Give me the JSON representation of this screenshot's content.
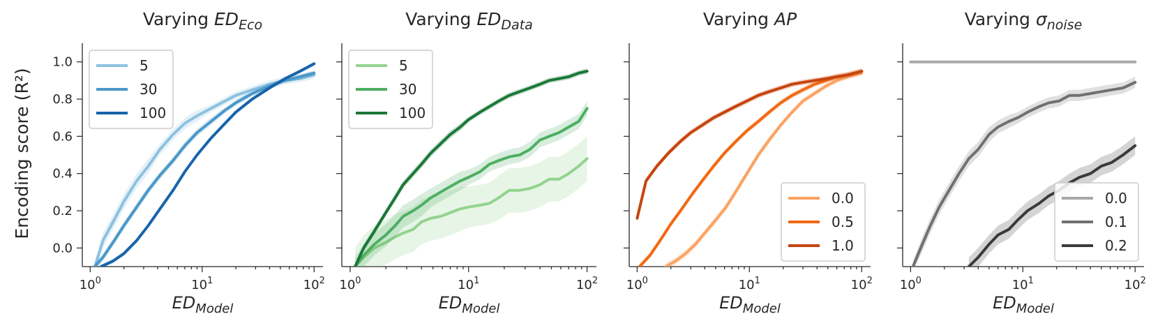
{
  "chart_data": [
    {
      "type": "line",
      "title_prefix": "Varying ",
      "title_var": "ED",
      "title_sub": "Eco",
      "xlabel_var": "ED",
      "xlabel_sub": "Model",
      "ylabel": "Encoding score (R²)",
      "xscale": "log",
      "xlim": [
        0.85,
        120
      ],
      "ylim": [
        -0.1,
        1.1
      ],
      "yticks": [
        "0.0",
        "0.2",
        "0.4",
        "0.6",
        "0.8",
        "1.0"
      ],
      "xticks": [
        {
          "base": "10",
          "exp": "0"
        },
        {
          "base": "10",
          "exp": "1"
        },
        {
          "base": "10",
          "exp": "2"
        }
      ],
      "legend_position": "top-left",
      "series": [
        {
          "name": "5",
          "color": "#8dc1e0",
          "x": [
            1.1,
            1.3,
            1.6,
            2.0,
            2.6,
            3.3,
            4.2,
            5.5,
            7,
            9,
            12,
            16,
            20,
            28,
            40,
            55,
            75,
            100
          ],
          "y": [
            -0.1,
            0.04,
            0.14,
            0.25,
            0.36,
            0.44,
            0.53,
            0.61,
            0.67,
            0.71,
            0.75,
            0.79,
            0.82,
            0.85,
            0.88,
            0.9,
            0.91,
            0.93
          ],
          "band": [
            0.03,
            0.04,
            0.04,
            0.04,
            0.04,
            0.04,
            0.03,
            0.03,
            0.03,
            0.03,
            0.02,
            0.02,
            0.02,
            0.02,
            0.02,
            0.02,
            0.02,
            0.02
          ]
        },
        {
          "name": "30",
          "color": "#4a98c9",
          "x": [
            1.1,
            1.3,
            1.6,
            2.0,
            2.6,
            3.3,
            4.2,
            5.5,
            7,
            9,
            12,
            16,
            20,
            28,
            40,
            55,
            75,
            100
          ],
          "y": [
            -0.1,
            -0.05,
            0.03,
            0.12,
            0.22,
            0.31,
            0.39,
            0.47,
            0.55,
            0.62,
            0.68,
            0.74,
            0.78,
            0.83,
            0.87,
            0.9,
            0.92,
            0.94
          ],
          "band": [
            0.02,
            0.02,
            0.02,
            0.02,
            0.02,
            0.02,
            0.02,
            0.02,
            0.02,
            0.02,
            0.02,
            0.015,
            0.015,
            0.015,
            0.015,
            0.015,
            0.015,
            0.015
          ]
        },
        {
          "name": "100",
          "color": "#1764ab",
          "x": [
            1.25,
            1.6,
            2.0,
            2.6,
            3.3,
            4.2,
            5.5,
            7,
            9,
            12,
            16,
            20,
            28,
            40,
            55,
            75,
            100
          ],
          "y": [
            -0.1,
            -0.07,
            -0.03,
            0.04,
            0.12,
            0.21,
            0.31,
            0.41,
            0.5,
            0.59,
            0.67,
            0.73,
            0.8,
            0.86,
            0.91,
            0.95,
            0.99
          ],
          "band": [
            0.01,
            0.01,
            0.01,
            0.01,
            0.01,
            0.01,
            0.01,
            0.01,
            0.01,
            0.01,
            0.01,
            0.01,
            0.01,
            0.01,
            0.01,
            0.01,
            0.01
          ]
        }
      ]
    },
    {
      "type": "line",
      "title_prefix": "Varying ",
      "title_var": "ED",
      "title_sub": "Data",
      "xlabel_var": "ED",
      "xlabel_sub": "Model",
      "ylabel": "",
      "xscale": "log",
      "xlim": [
        0.85,
        120
      ],
      "ylim": [
        -0.1,
        1.1
      ],
      "yticks": [],
      "xticks": [
        {
          "base": "10",
          "exp": "0"
        },
        {
          "base": "10",
          "exp": "1"
        },
        {
          "base": "10",
          "exp": "2"
        }
      ],
      "legend_position": "top-left",
      "series": [
        {
          "name": "5",
          "color": "#93d38e",
          "x": [
            1.1,
            1.3,
            1.6,
            2.0,
            2.4,
            2.8,
            3.4,
            4.0,
            4.8,
            5.8,
            7,
            8.5,
            10,
            12.5,
            15,
            18,
            22,
            27,
            33,
            40,
            48,
            58,
            70,
            85,
            100
          ],
          "y": [
            -0.1,
            -0.05,
            0.0,
            0.03,
            0.06,
            0.08,
            0.1,
            0.14,
            0.16,
            0.17,
            0.19,
            0.21,
            0.22,
            0.23,
            0.24,
            0.27,
            0.31,
            0.31,
            0.32,
            0.34,
            0.37,
            0.37,
            0.4,
            0.44,
            0.48
          ],
          "band": [
            0.1,
            0.12,
            0.12,
            0.12,
            0.12,
            0.12,
            0.12,
            0.12,
            0.12,
            0.12,
            0.12,
            0.12,
            0.11,
            0.11,
            0.11,
            0.12,
            0.12,
            0.12,
            0.12,
            0.12,
            0.12,
            0.12,
            0.12,
            0.12,
            0.12
          ]
        },
        {
          "name": "30",
          "color": "#4daf62",
          "x": [
            1.1,
            1.3,
            1.6,
            2.0,
            2.4,
            2.8,
            3.4,
            4.0,
            4.8,
            5.8,
            7,
            8.5,
            10,
            12.5,
            15,
            18,
            22,
            27,
            33,
            40,
            48,
            58,
            70,
            85,
            100
          ],
          "y": [
            -0.1,
            -0.04,
            0.02,
            0.07,
            0.12,
            0.17,
            0.2,
            0.23,
            0.27,
            0.3,
            0.33,
            0.36,
            0.38,
            0.41,
            0.45,
            0.47,
            0.49,
            0.5,
            0.53,
            0.58,
            0.6,
            0.62,
            0.65,
            0.68,
            0.75
          ],
          "band": [
            0.05,
            0.06,
            0.06,
            0.06,
            0.06,
            0.06,
            0.06,
            0.06,
            0.05,
            0.05,
            0.05,
            0.05,
            0.04,
            0.04,
            0.04,
            0.04,
            0.04,
            0.04,
            0.04,
            0.04,
            0.04,
            0.04,
            0.04,
            0.04,
            0.04
          ]
        },
        {
          "name": "100",
          "color": "#1b7837",
          "x": [
            1.1,
            1.3,
            1.6,
            2.0,
            2.4,
            2.8,
            3.4,
            4.0,
            4.8,
            5.8,
            7,
            8.5,
            10,
            12.5,
            15,
            18,
            22,
            27,
            33,
            40,
            48,
            58,
            70,
            85,
            100
          ],
          "y": [
            -0.1,
            0.0,
            0.09,
            0.19,
            0.27,
            0.34,
            0.4,
            0.45,
            0.51,
            0.56,
            0.61,
            0.65,
            0.69,
            0.73,
            0.76,
            0.79,
            0.82,
            0.84,
            0.86,
            0.88,
            0.9,
            0.91,
            0.92,
            0.94,
            0.95
          ],
          "band": [
            0.02,
            0.02,
            0.02,
            0.02,
            0.02,
            0.02,
            0.02,
            0.02,
            0.02,
            0.02,
            0.02,
            0.02,
            0.015,
            0.015,
            0.015,
            0.015,
            0.015,
            0.015,
            0.015,
            0.015,
            0.015,
            0.015,
            0.015,
            0.015,
            0.015
          ]
        }
      ]
    },
    {
      "type": "line",
      "title_prefix": "Varying ",
      "title_var": "AP",
      "title_sub": "",
      "xlabel_var": "ED",
      "xlabel_sub": "Model",
      "ylabel": "",
      "xscale": "log",
      "xlim": [
        0.85,
        120
      ],
      "ylim": [
        -0.1,
        1.1
      ],
      "yticks": [],
      "xticks": [
        {
          "base": "10",
          "exp": "0"
        },
        {
          "base": "10",
          "exp": "1"
        },
        {
          "base": "10",
          "exp": "2"
        }
      ],
      "legend_position": "lower-right",
      "series": [
        {
          "name": "0.0",
          "color": "#fca262",
          "x": [
            1.8,
            2.2,
            2.7,
            3.3,
            4.0,
            5.0,
            6.2,
            7.7,
            9.5,
            12,
            15,
            19,
            24,
            30,
            38,
            48,
            60,
            75,
            100
          ],
          "y": [
            -0.1,
            -0.07,
            -0.03,
            0.02,
            0.08,
            0.15,
            0.22,
            0.31,
            0.4,
            0.5,
            0.58,
            0.66,
            0.73,
            0.79,
            0.83,
            0.87,
            0.9,
            0.92,
            0.94
          ],
          "band": [
            0.02,
            0.02,
            0.02,
            0.02,
            0.02,
            0.02,
            0.02,
            0.02,
            0.02,
            0.02,
            0.02,
            0.015,
            0.015,
            0.015,
            0.015,
            0.015,
            0.015,
            0.015,
            0.015
          ]
        },
        {
          "name": "0.5",
          "color": "#f16913",
          "x": [
            1.05,
            1.3,
            1.6,
            2.0,
            2.5,
            3.1,
            3.9,
            4.8,
            6,
            7.5,
            9.5,
            12,
            15,
            19,
            24,
            30,
            38,
            48,
            60,
            75,
            100
          ],
          "y": [
            -0.1,
            -0.04,
            0.04,
            0.13,
            0.21,
            0.29,
            0.37,
            0.44,
            0.51,
            0.57,
            0.63,
            0.68,
            0.73,
            0.78,
            0.82,
            0.85,
            0.88,
            0.9,
            0.92,
            0.93,
            0.95
          ],
          "band": [
            0.015,
            0.015,
            0.015,
            0.015,
            0.015,
            0.015,
            0.015,
            0.015,
            0.015,
            0.015,
            0.015,
            0.015,
            0.015,
            0.015,
            0.015,
            0.015,
            0.015,
            0.015,
            0.015,
            0.015,
            0.015
          ]
        },
        {
          "name": "1.0",
          "color": "#c7440e",
          "x": [
            1.0,
            1.2,
            1.5,
            1.9,
            2.4,
            3.0,
            3.8,
            4.8,
            6,
            7.5,
            9.5,
            12,
            15,
            19,
            24,
            30,
            38,
            48,
            60,
            75,
            100
          ],
          "y": [
            0.16,
            0.36,
            0.44,
            0.51,
            0.57,
            0.62,
            0.66,
            0.7,
            0.73,
            0.76,
            0.79,
            0.82,
            0.84,
            0.86,
            0.88,
            0.89,
            0.9,
            0.91,
            0.92,
            0.93,
            0.95
          ],
          "band": [
            0.015,
            0.015,
            0.015,
            0.015,
            0.015,
            0.015,
            0.015,
            0.015,
            0.015,
            0.015,
            0.015,
            0.015,
            0.015,
            0.015,
            0.015,
            0.015,
            0.015,
            0.015,
            0.015,
            0.015,
            0.015
          ]
        }
      ]
    },
    {
      "type": "line",
      "title_prefix": "Varying ",
      "title_var": "σ",
      "title_sub": "noise",
      "xlabel_var": "ED",
      "xlabel_sub": "Model",
      "ylabel": "",
      "xscale": "log",
      "xlim": [
        0.85,
        120
      ],
      "ylim": [
        -0.1,
        1.1
      ],
      "yticks": [],
      "xticks": [
        {
          "base": "10",
          "exp": "0"
        },
        {
          "base": "10",
          "exp": "1"
        },
        {
          "base": "10",
          "exp": "2"
        }
      ],
      "legend_position": "lower-right",
      "series": [
        {
          "name": "0.0",
          "color": "#a8a8a8",
          "x": [
            1.0,
            100
          ],
          "y": [
            1.0,
            1.0
          ],
          "band": [
            0.005,
            0.005
          ]
        },
        {
          "name": "0.1",
          "color": "#707070",
          "x": [
            1.05,
            1.25,
            1.5,
            1.8,
            2.2,
            2.7,
            3.3,
            4.0,
            5.0,
            6.0,
            7.5,
            9.0,
            11,
            14,
            17,
            21,
            26,
            32,
            40,
            50,
            62,
            78,
            100
          ],
          "y": [
            -0.1,
            0.01,
            0.12,
            0.22,
            0.31,
            0.4,
            0.48,
            0.53,
            0.61,
            0.65,
            0.68,
            0.7,
            0.73,
            0.76,
            0.78,
            0.79,
            0.82,
            0.82,
            0.83,
            0.84,
            0.85,
            0.86,
            0.89
          ],
          "band": [
            0.03,
            0.04,
            0.04,
            0.04,
            0.04,
            0.04,
            0.04,
            0.04,
            0.04,
            0.035,
            0.035,
            0.03,
            0.03,
            0.03,
            0.03,
            0.03,
            0.03,
            0.03,
            0.03,
            0.03,
            0.03,
            0.03,
            0.03
          ]
        },
        {
          "name": "0.2",
          "color": "#3a3a3a",
          "x": [
            3.3,
            4.0,
            5.0,
            6.0,
            7.5,
            9.0,
            11,
            14,
            17,
            21,
            26,
            32,
            40,
            50,
            62,
            78,
            100
          ],
          "y": [
            -0.1,
            -0.05,
            0.02,
            0.07,
            0.1,
            0.15,
            0.2,
            0.24,
            0.28,
            0.31,
            0.35,
            0.38,
            0.4,
            0.44,
            0.46,
            0.5,
            0.55
          ],
          "band": [
            0.05,
            0.05,
            0.05,
            0.05,
            0.05,
            0.05,
            0.05,
            0.05,
            0.05,
            0.05,
            0.05,
            0.05,
            0.05,
            0.05,
            0.05,
            0.05,
            0.05
          ]
        }
      ]
    }
  ]
}
